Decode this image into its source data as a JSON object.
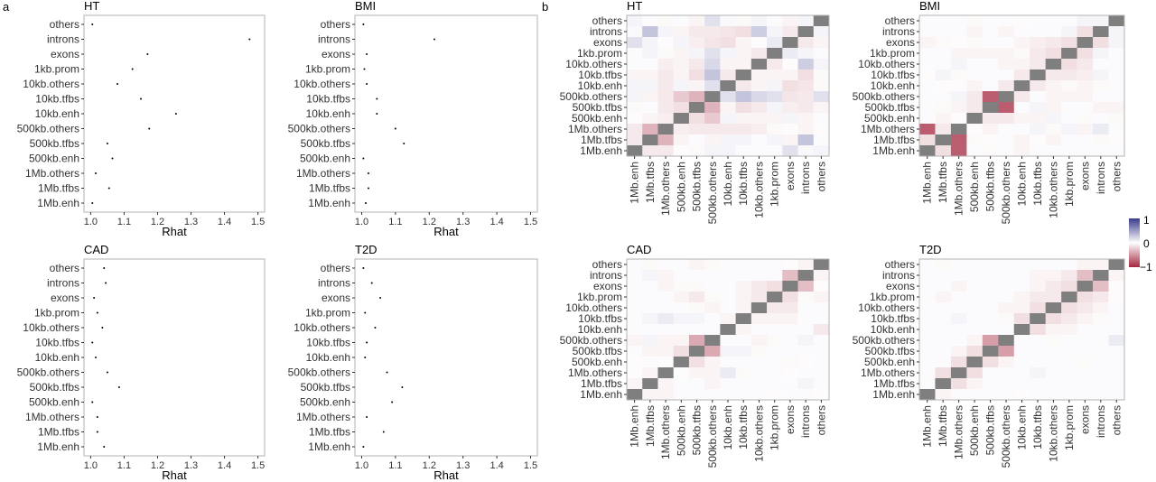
{
  "panel_labels": {
    "a": "a",
    "b": "b"
  },
  "colors": {
    "diag": "#7f7f7f",
    "neg": "#a3273f",
    "pos": "#3a3a8c",
    "zero": "#ffffff",
    "frame": "#b3b3b3",
    "point": "#000000"
  },
  "colorbar": {
    "max_label": "1",
    "mid_label": "0",
    "min_label": "−1"
  },
  "chart_data": [
    {
      "type": "scatter",
      "title": "HT",
      "xlabel": "Rhat",
      "ylabel": "",
      "categories": [
        "others",
        "introns",
        "exons",
        "1kb.prom",
        "10kb.others",
        "10kb.tfbs",
        "10kb.enh",
        "500kb.others",
        "500kb.tfbs",
        "500kb.enh",
        "1Mb.others",
        "1Mb.tfbs",
        "1Mb.enh"
      ],
      "values": [
        1.005,
        1.475,
        1.17,
        1.125,
        1.08,
        1.15,
        1.255,
        1.175,
        1.05,
        1.065,
        1.015,
        1.055,
        1.005
      ],
      "xlim": [
        0.98,
        1.52
      ],
      "xticks": [
        "1.0",
        "1.1",
        "1.2",
        "1.3",
        "1.4",
        "1.5"
      ],
      "grid": false
    },
    {
      "type": "scatter",
      "title": "BMI",
      "xlabel": "Rhat",
      "ylabel": "",
      "categories": [
        "others",
        "introns",
        "exons",
        "1kb.prom",
        "10kb.others",
        "10kb.tfbs",
        "10kb.enh",
        "500kb.others",
        "500kb.tfbs",
        "500kb.enh",
        "1Mb.others",
        "1Mb.tfbs",
        "1Mb.enh"
      ],
      "values": [
        1.005,
        1.215,
        1.015,
        1.008,
        1.015,
        1.045,
        1.045,
        1.1,
        1.125,
        1.005,
        1.02,
        1.02,
        1.012
      ],
      "xlim": [
        0.98,
        1.52
      ],
      "xticks": [
        "1.0",
        "1.1",
        "1.2",
        "1.3",
        "1.4",
        "1.5"
      ],
      "grid": false
    },
    {
      "type": "scatter",
      "title": "CAD",
      "xlabel": "Rhat",
      "ylabel": "",
      "categories": [
        "others",
        "introns",
        "exons",
        "1kb.prom",
        "10kb.others",
        "10kb.tfbs",
        "10kb.enh",
        "500kb.others",
        "500kb.tfbs",
        "500kb.enh",
        "1Mb.others",
        "1Mb.tfbs",
        "1Mb.enh"
      ],
      "values": [
        1.04,
        1.045,
        1.01,
        1.02,
        1.035,
        1.005,
        1.015,
        1.05,
        1.085,
        1.005,
        1.02,
        1.02,
        1.04
      ],
      "xlim": [
        0.98,
        1.52
      ],
      "xticks": [
        "1.0",
        "1.1",
        "1.2",
        "1.3",
        "1.4",
        "1.5"
      ],
      "grid": false
    },
    {
      "type": "scatter",
      "title": "T2D",
      "xlabel": "Rhat",
      "ylabel": "",
      "categories": [
        "others",
        "introns",
        "exons",
        "1kb.prom",
        "10kb.others",
        "10kb.tfbs",
        "10kb.enh",
        "500kb.others",
        "500kb.tfbs",
        "500kb.enh",
        "1Mb.others",
        "1Mb.tfbs",
        "1Mb.enh"
      ],
      "values": [
        1.005,
        1.03,
        1.055,
        1.01,
        1.04,
        1.015,
        1.01,
        1.075,
        1.12,
        1.09,
        1.015,
        1.065,
        1.005
      ],
      "xlim": [
        0.98,
        1.52
      ],
      "xticks": [
        "1.0",
        "1.1",
        "1.2",
        "1.3",
        "1.4",
        "1.5"
      ],
      "grid": false
    },
    {
      "type": "heatmap",
      "title": "HT",
      "zlim": [
        -1,
        1
      ],
      "x": [
        "1Mb.enh",
        "1Mb.tfbs",
        "1Mb.others",
        "500kb.enh",
        "500kb.tfbs",
        "500kb.others",
        "10kb.enh",
        "10kb.tfbs",
        "10kb.others",
        "1kb.prom",
        "exons",
        "introns",
        "others"
      ],
      "y": [
        "others",
        "introns",
        "exons",
        "1kb.prom",
        "10kb.others",
        "10kb.tfbs",
        "10kb.enh",
        "500kb.others",
        "500kb.tfbs",
        "500kb.enh",
        "1Mb.others",
        "1Mb.tfbs",
        "1Mb.enh"
      ],
      "z": [
        [
          0.05,
          0.02,
          -0.03,
          0.02,
          -0.05,
          0.15,
          0.03,
          -0.03,
          0.05,
          0.02,
          -0.05,
          0.05,
          null
        ],
        [
          0.03,
          0.3,
          0.05,
          -0.05,
          -0.1,
          -0.1,
          -0.12,
          -0.15,
          0.25,
          0.05,
          -0.1,
          null,
          0.05
        ],
        [
          0.15,
          0.05,
          -0.02,
          0.05,
          -0.08,
          -0.12,
          -0.15,
          -0.05,
          -0.02,
          0.1,
          null,
          -0.1,
          -0.05
        ],
        [
          0.02,
          0.05,
          -0.03,
          -0.05,
          0.05,
          0.15,
          0.05,
          -0.05,
          -0.1,
          null,
          0.1,
          0.05,
          0.02
        ],
        [
          0.02,
          0.02,
          -0.08,
          -0.05,
          -0.1,
          0.2,
          -0.05,
          -0.05,
          null,
          -0.1,
          -0.02,
          0.25,
          0.05
        ],
        [
          -0.05,
          -0.05,
          -0.1,
          -0.05,
          -0.15,
          0.3,
          -0.1,
          null,
          -0.05,
          -0.05,
          -0.05,
          -0.15,
          -0.03
        ],
        [
          0.05,
          0.05,
          -0.1,
          0.05,
          -0.05,
          0.15,
          null,
          -0.1,
          -0.05,
          0.05,
          -0.15,
          -0.12,
          -0.03
        ],
        [
          0.05,
          -0.05,
          -0.1,
          -0.25,
          -0.35,
          null,
          0.15,
          0.3,
          0.2,
          0.15,
          -0.12,
          -0.1,
          0.15
        ],
        [
          -0.03,
          0.02,
          -0.1,
          -0.15,
          null,
          -0.35,
          -0.05,
          -0.15,
          -0.1,
          0.05,
          -0.08,
          -0.1,
          -0.05
        ],
        [
          -0.02,
          -0.05,
          -0.08,
          null,
          -0.15,
          -0.25,
          0.05,
          -0.05,
          -0.05,
          -0.05,
          0.05,
          -0.05,
          0.02
        ],
        [
          -0.1,
          -0.35,
          null,
          -0.08,
          -0.1,
          -0.1,
          -0.1,
          -0.1,
          -0.08,
          -0.03,
          -0.02,
          -0.05,
          -0.02
        ],
        [
          -0.1,
          null,
          -0.35,
          -0.05,
          0.02,
          -0.05,
          0.05,
          0.05,
          0.02,
          0.05,
          -0.05,
          0.3,
          0.02
        ],
        [
          null,
          -0.1,
          -0.1,
          -0.02,
          -0.03,
          0.05,
          0.05,
          0.02,
          0.02,
          0.02,
          0.15,
          0.03,
          0.05
        ]
      ]
    },
    {
      "type": "heatmap",
      "title": "BMI",
      "zlim": [
        -1,
        1
      ],
      "x": [
        "1Mb.enh",
        "1Mb.tfbs",
        "1Mb.others",
        "500kb.enh",
        "500kb.tfbs",
        "500kb.others",
        "10kb.enh",
        "10kb.tfbs",
        "10kb.others",
        "1kb.prom",
        "exons",
        "introns",
        "others"
      ],
      "y": [
        "others",
        "introns",
        "exons",
        "1kb.prom",
        "10kb.others",
        "10kb.tfbs",
        "10kb.enh",
        "500kb.others",
        "500kb.tfbs",
        "500kb.enh",
        "1Mb.others",
        "1Mb.tfbs",
        "1Mb.enh"
      ],
      "z": [
        [
          0.02,
          0.02,
          0.02,
          -0.03,
          0.02,
          0.02,
          -0.02,
          0.02,
          0.02,
          0.02,
          0.05,
          0.05,
          null
        ],
        [
          0.02,
          0.02,
          0.02,
          -0.05,
          0.02,
          -0.05,
          0.02,
          0.02,
          0.02,
          0.05,
          -0.15,
          null,
          0.05
        ],
        [
          -0.05,
          -0.03,
          -0.02,
          -0.03,
          0.02,
          0.02,
          -0.05,
          -0.08,
          -0.1,
          -0.15,
          null,
          -0.15,
          0.05
        ],
        [
          0.02,
          0.02,
          -0.05,
          -0.05,
          -0.05,
          -0.05,
          -0.03,
          -0.1,
          -0.15,
          null,
          -0.15,
          0.05,
          0.02
        ],
        [
          0.02,
          0.02,
          0.05,
          0.02,
          0.02,
          -0.05,
          -0.05,
          -0.1,
          null,
          -0.15,
          -0.1,
          0.02,
          0.02
        ],
        [
          -0.02,
          0.05,
          -0.03,
          0.02,
          0.02,
          0.02,
          -0.1,
          null,
          -0.1,
          -0.1,
          -0.08,
          0.05,
          0.02
        ],
        [
          0.02,
          -0.02,
          -0.02,
          -0.05,
          0.02,
          -0.1,
          null,
          -0.1,
          -0.05,
          -0.03,
          -0.05,
          -0.03,
          0.02
        ],
        [
          0.02,
          0.02,
          0.05,
          -0.1,
          -0.75,
          null,
          -0.1,
          0.02,
          -0.05,
          -0.05,
          -0.05,
          0.02,
          0.02
        ],
        [
          0.02,
          -0.03,
          -0.05,
          -0.1,
          null,
          -0.75,
          0.02,
          0.05,
          -0.05,
          0.02,
          0.02,
          -0.05,
          -0.05
        ],
        [
          0.02,
          -0.05,
          -0.02,
          null,
          -0.1,
          -0.1,
          -0.05,
          -0.05,
          0.05,
          0.02,
          -0.03,
          0.02,
          -0.03
        ],
        [
          -0.75,
          -0.1,
          null,
          -0.02,
          -0.05,
          0.02,
          0.02,
          0.05,
          -0.03,
          0.05,
          -0.05,
          0.1,
          0.02
        ],
        [
          -0.15,
          null,
          -0.75,
          -0.03,
          -0.02,
          0.02,
          -0.05,
          -0.02,
          -0.05,
          0.02,
          0.02,
          -0.03,
          -0.02
        ],
        [
          null,
          -0.15,
          -0.75,
          0.02,
          -0.03,
          0.02,
          -0.05,
          0.02,
          0.02,
          0.02,
          0.02,
          0.02,
          0.02
        ]
      ]
    },
    {
      "type": "heatmap",
      "title": "CAD",
      "zlim": [
        -1,
        1
      ],
      "x": [
        "1Mb.enh",
        "1Mb.tfbs",
        "1Mb.others",
        "500kb.enh",
        "500kb.tfbs",
        "500kb.others",
        "10kb.enh",
        "10kb.tfbs",
        "10kb.others",
        "1kb.prom",
        "exons",
        "introns",
        "others"
      ],
      "y": [
        "others",
        "introns",
        "exons",
        "1kb.prom",
        "10kb.others",
        "10kb.tfbs",
        "10kb.enh",
        "500kb.others",
        "500kb.tfbs",
        "500kb.enh",
        "1Mb.others",
        "1Mb.tfbs",
        "1Mb.enh"
      ],
      "z": [
        [
          0.02,
          -0.03,
          0.02,
          0.02,
          -0.05,
          -0.03,
          0.02,
          0.02,
          0.02,
          0.02,
          -0.02,
          -0.05,
          null
        ],
        [
          0.02,
          0.05,
          -0.05,
          0.02,
          0.02,
          0.02,
          0.02,
          0.02,
          0.02,
          0.02,
          -0.3,
          null,
          -0.05
        ],
        [
          0.02,
          0.02,
          -0.05,
          -0.03,
          -0.03,
          0.02,
          0.02,
          -0.05,
          -0.1,
          -0.15,
          null,
          -0.3,
          -0.02
        ],
        [
          0.02,
          0.02,
          0.02,
          -0.05,
          -0.1,
          -0.03,
          0.02,
          -0.05,
          -0.1,
          null,
          -0.15,
          -0.03,
          -0.05
        ],
        [
          0.02,
          0.02,
          0.02,
          0.02,
          -0.03,
          -0.05,
          0.02,
          -0.05,
          null,
          -0.1,
          -0.1,
          0.02,
          0.02
        ],
        [
          0.02,
          0.05,
          0.1,
          0.05,
          0.05,
          0.02,
          -0.05,
          null,
          -0.05,
          -0.05,
          -0.05,
          0.02,
          0.02
        ],
        [
          0.02,
          0.02,
          0.02,
          0.02,
          0.02,
          0.02,
          null,
          -0.05,
          0.02,
          0.02,
          0.02,
          0.02,
          -0.1
        ],
        [
          -0.05,
          0.05,
          -0.05,
          -0.05,
          -0.4,
          null,
          0.02,
          0.02,
          -0.05,
          -0.03,
          0.02,
          0.05,
          0.02
        ],
        [
          0.02,
          -0.05,
          -0.05,
          -0.15,
          null,
          -0.4,
          0.05,
          0.05,
          -0.03,
          0.02,
          0.02,
          0.02,
          0.02
        ],
        [
          -0.02,
          0.02,
          -0.02,
          null,
          -0.15,
          -0.05,
          0.02,
          0.02,
          0.02,
          0.02,
          -0.03,
          -0.02,
          0.02
        ],
        [
          -0.02,
          -0.05,
          null,
          -0.02,
          -0.05,
          -0.05,
          0.1,
          -0.03,
          0.02,
          0.02,
          -0.02,
          0.02,
          0.02
        ],
        [
          -0.05,
          null,
          -0.05,
          0.02,
          0.02,
          -0.05,
          0.02,
          0.02,
          0.02,
          0.02,
          0.02,
          0.05,
          0.02
        ],
        [
          null,
          -0.05,
          -0.05,
          0.02,
          0.02,
          0.02,
          0.02,
          0.02,
          0.02,
          -0.02,
          0.02,
          0.02,
          -0.02
        ]
      ]
    },
    {
      "type": "heatmap",
      "title": "T2D",
      "zlim": [
        -1,
        1
      ],
      "x": [
        "1Mb.enh",
        "1Mb.tfbs",
        "1Mb.others",
        "500kb.enh",
        "500kb.tfbs",
        "500kb.others",
        "10kb.enh",
        "10kb.tfbs",
        "10kb.others",
        "1kb.prom",
        "exons",
        "introns",
        "others"
      ],
      "y": [
        "others",
        "introns",
        "exons",
        "1kb.prom",
        "10kb.others",
        "10kb.tfbs",
        "10kb.enh",
        "500kb.others",
        "500kb.tfbs",
        "500kb.enh",
        "1Mb.others",
        "1Mb.tfbs",
        "1Mb.enh"
      ],
      "z": [
        [
          0.02,
          -0.03,
          0.02,
          0.02,
          0.02,
          0.02,
          0.02,
          0.02,
          0.02,
          0.02,
          -0.05,
          -0.05,
          null
        ],
        [
          0.02,
          0.02,
          0.02,
          0.02,
          0.02,
          0.02,
          0.02,
          -0.05,
          -0.05,
          -0.1,
          -0.3,
          null,
          -0.05
        ],
        [
          0.02,
          0.02,
          -0.05,
          0.02,
          0.02,
          0.02,
          0.02,
          -0.05,
          -0.1,
          -0.15,
          null,
          -0.3,
          -0.02
        ],
        [
          0.02,
          -0.05,
          0.02,
          0.02,
          0.02,
          0.02,
          -0.05,
          -0.1,
          -0.1,
          null,
          -0.15,
          -0.1,
          -0.02
        ],
        [
          0.02,
          0.02,
          0.02,
          0.02,
          0.02,
          -0.05,
          -0.05,
          -0.15,
          null,
          -0.15,
          -0.1,
          -0.05,
          0.02
        ],
        [
          0.02,
          0.02,
          0.05,
          0.02,
          0.02,
          -0.03,
          -0.15,
          null,
          -0.15,
          -0.1,
          -0.05,
          -0.03,
          0.02
        ],
        [
          0.02,
          0.02,
          0.02,
          0.02,
          0.02,
          0.02,
          null,
          -0.15,
          -0.05,
          -0.05,
          0.02,
          0.02,
          0.02
        ],
        [
          0.02,
          0.02,
          0.02,
          -0.05,
          -0.45,
          null,
          0.02,
          0.02,
          -0.03,
          0.02,
          0.02,
          0.02,
          0.1
        ],
        [
          0.02,
          0.02,
          -0.05,
          -0.15,
          null,
          -0.45,
          0.02,
          0.02,
          0.02,
          0.02,
          0.02,
          0.02,
          0.02
        ],
        [
          0.02,
          0.02,
          -0.15,
          null,
          -0.15,
          -0.05,
          0.02,
          0.02,
          0.02,
          0.02,
          -0.03,
          0.02,
          0.02
        ],
        [
          0.02,
          -0.15,
          null,
          -0.15,
          0.02,
          0.02,
          0.02,
          0.05,
          0.02,
          0.02,
          0.02,
          0.02,
          0.02
        ],
        [
          0.02,
          null,
          -0.15,
          -0.05,
          0.02,
          0.02,
          0.02,
          0.02,
          0.02,
          0.02,
          0.02,
          0.02,
          0.02
        ],
        [
          null,
          -0.05,
          0.02,
          0.02,
          0.02,
          0.02,
          -0.02,
          0.02,
          0.02,
          0.02,
          0.02,
          0.02,
          0.02
        ]
      ]
    }
  ]
}
